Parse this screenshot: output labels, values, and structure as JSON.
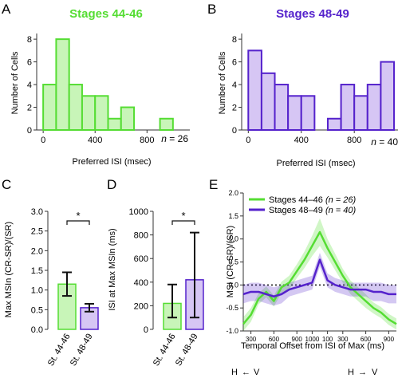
{
  "colors": {
    "green": "#55dd33",
    "green_fill": "#c8f5b8",
    "purple": "#5522cc",
    "purple_fill": "#d6c6f4",
    "axis": "#333333"
  },
  "panels": {
    "A": {
      "letter": "A",
      "title": "Stages 44-46"
    },
    "B": {
      "letter": "B",
      "title": "Stages 48-49"
    },
    "C": {
      "letter": "C"
    },
    "D": {
      "letter": "D"
    },
    "E": {
      "letter": "E"
    }
  },
  "chart_data": [
    {
      "id": "A",
      "type": "bar",
      "title": "Stages 44-46",
      "xlabel": "Preferred ISI (msec)",
      "ylabel": "Number of Cells",
      "bin_width": 100,
      "bin_starts": [
        0,
        100,
        200,
        300,
        400,
        500,
        600,
        700,
        800,
        900
      ],
      "values": [
        4,
        8,
        4,
        3,
        3,
        1,
        2,
        0,
        0,
        1
      ],
      "xlim": [
        -50,
        1130
      ],
      "ylim": [
        0,
        8.5
      ],
      "xticks": [
        "0",
        "400",
        "800"
      ],
      "xtick_values": [
        0,
        400,
        800
      ],
      "yticks": [
        "0",
        "2",
        "4",
        "6",
        "8"
      ],
      "ytick_values": [
        0,
        2,
        4,
        6,
        8
      ],
      "annotation": "n = 26"
    },
    {
      "id": "B",
      "type": "bar",
      "title": "Stages 48-49",
      "xlabel": "Preferred ISI (msec)",
      "ylabel": "Number of Cells",
      "bin_width": 100,
      "bin_starts": [
        0,
        100,
        200,
        300,
        400,
        500,
        600,
        700,
        800,
        900,
        1000
      ],
      "values": [
        7,
        5,
        4,
        3,
        3,
        0,
        1,
        4,
        3,
        4,
        6
      ],
      "xlim": [
        -50,
        1130
      ],
      "ylim": [
        0,
        8.5
      ],
      "xticks": [
        "0",
        "400",
        "800"
      ],
      "xtick_values": [
        0,
        400,
        800
      ],
      "yticks": [
        "0",
        "2",
        "4",
        "6",
        "8"
      ],
      "ytick_values": [
        0,
        2,
        4,
        6,
        8
      ],
      "annotation": "n = 40"
    },
    {
      "id": "C",
      "type": "bar",
      "categories": [
        "St. 44-46",
        "St. 48-49"
      ],
      "values": [
        1.15,
        0.55
      ],
      "error_low": [
        0.85,
        0.45
      ],
      "error_high": [
        1.45,
        0.65
      ],
      "ylabel": "Max MSIn (CR-SR)/(SR)",
      "ylim": [
        0,
        3.0
      ],
      "yticks": [
        "0.0",
        "0.5",
        "1.0",
        "1.5",
        "2.0",
        "2.5",
        "3.0"
      ],
      "ytick_values": [
        0,
        0.5,
        1.0,
        1.5,
        2.0,
        2.5,
        3.0
      ],
      "significance": "*"
    },
    {
      "id": "D",
      "type": "bar",
      "categories": [
        "St. 44-46",
        "St. 48-49"
      ],
      "values": [
        220,
        420
      ],
      "error_low": [
        100,
        100
      ],
      "error_high": [
        380,
        820
      ],
      "ylabel": "ISI at Max MSIn (ms)",
      "ylim": [
        0,
        1000
      ],
      "yticks": [
        "0",
        "200",
        "400",
        "600",
        "800",
        "1000"
      ],
      "ytick_values": [
        0,
        200,
        400,
        600,
        800,
        1000
      ],
      "significance": "*"
    },
    {
      "id": "E",
      "type": "line",
      "ylabel": "MSI (CR-SR)/(SR)",
      "xlabel": "Temporal Offset from ISI of Max (ms)",
      "ylim": [
        -1.0,
        2.0
      ],
      "yticks": [
        "-1.0",
        "-0.5",
        "0.0",
        "0.5",
        "1.0",
        "1.5",
        "2.0"
      ],
      "ytick_values": [
        -1.0,
        -0.5,
        0.0,
        0.5,
        1.0,
        1.5,
        2.0
      ],
      "xticks": [
        "300",
        "600",
        "900",
        "1000",
        "100",
        "300",
        "600",
        "900"
      ],
      "xtick_positions": [
        -900,
        -600,
        -300,
        -100,
        100,
        300,
        600,
        900
      ],
      "xlim": [
        -1000,
        1000
      ],
      "zero_line": 0.0,
      "direction_labels": [
        "H",
        "V",
        "H",
        "V"
      ],
      "series": [
        {
          "name": "Stages 44–46",
          "n_label": "(n = 26)",
          "x": [
            -1000,
            -900,
            -800,
            -700,
            -600,
            -500,
            -400,
            -300,
            -200,
            -100,
            0,
            100,
            200,
            300,
            400,
            500,
            600,
            700,
            800,
            900,
            1000
          ],
          "y": [
            -0.85,
            -0.65,
            -0.3,
            -0.15,
            -0.35,
            -0.05,
            0.05,
            0.3,
            0.55,
            0.85,
            1.15,
            0.8,
            0.5,
            0.2,
            -0.05,
            -0.2,
            -0.35,
            -0.5,
            -0.6,
            -0.75,
            -0.85
          ],
          "band": [
            0.15,
            0.15,
            0.12,
            0.12,
            0.12,
            0.12,
            0.15,
            0.15,
            0.18,
            0.22,
            0.3,
            0.2,
            0.18,
            0.15,
            0.15,
            0.15,
            0.15,
            0.12,
            0.12,
            0.12,
            0.12
          ]
        },
        {
          "name": "Stages 48–49",
          "n_label": "(n = 40)",
          "x": [
            -1000,
            -900,
            -800,
            -700,
            -600,
            -500,
            -400,
            -300,
            -200,
            -100,
            0,
            100,
            200,
            300,
            400,
            500,
            600,
            700,
            800,
            900,
            1000
          ],
          "y": [
            -0.2,
            -0.15,
            -0.15,
            -0.2,
            -0.25,
            -0.2,
            -0.1,
            -0.05,
            0.0,
            0.05,
            0.55,
            0.1,
            0.0,
            -0.05,
            -0.1,
            -0.1,
            -0.1,
            -0.15,
            -0.15,
            -0.2,
            -0.2
          ],
          "band": [
            0.2,
            0.2,
            0.2,
            0.2,
            0.2,
            0.2,
            0.15,
            0.15,
            0.15,
            0.15,
            0.15,
            0.15,
            0.15,
            0.15,
            0.15,
            0.15,
            0.15,
            0.2,
            0.2,
            0.2,
            0.2
          ]
        }
      ]
    }
  ]
}
